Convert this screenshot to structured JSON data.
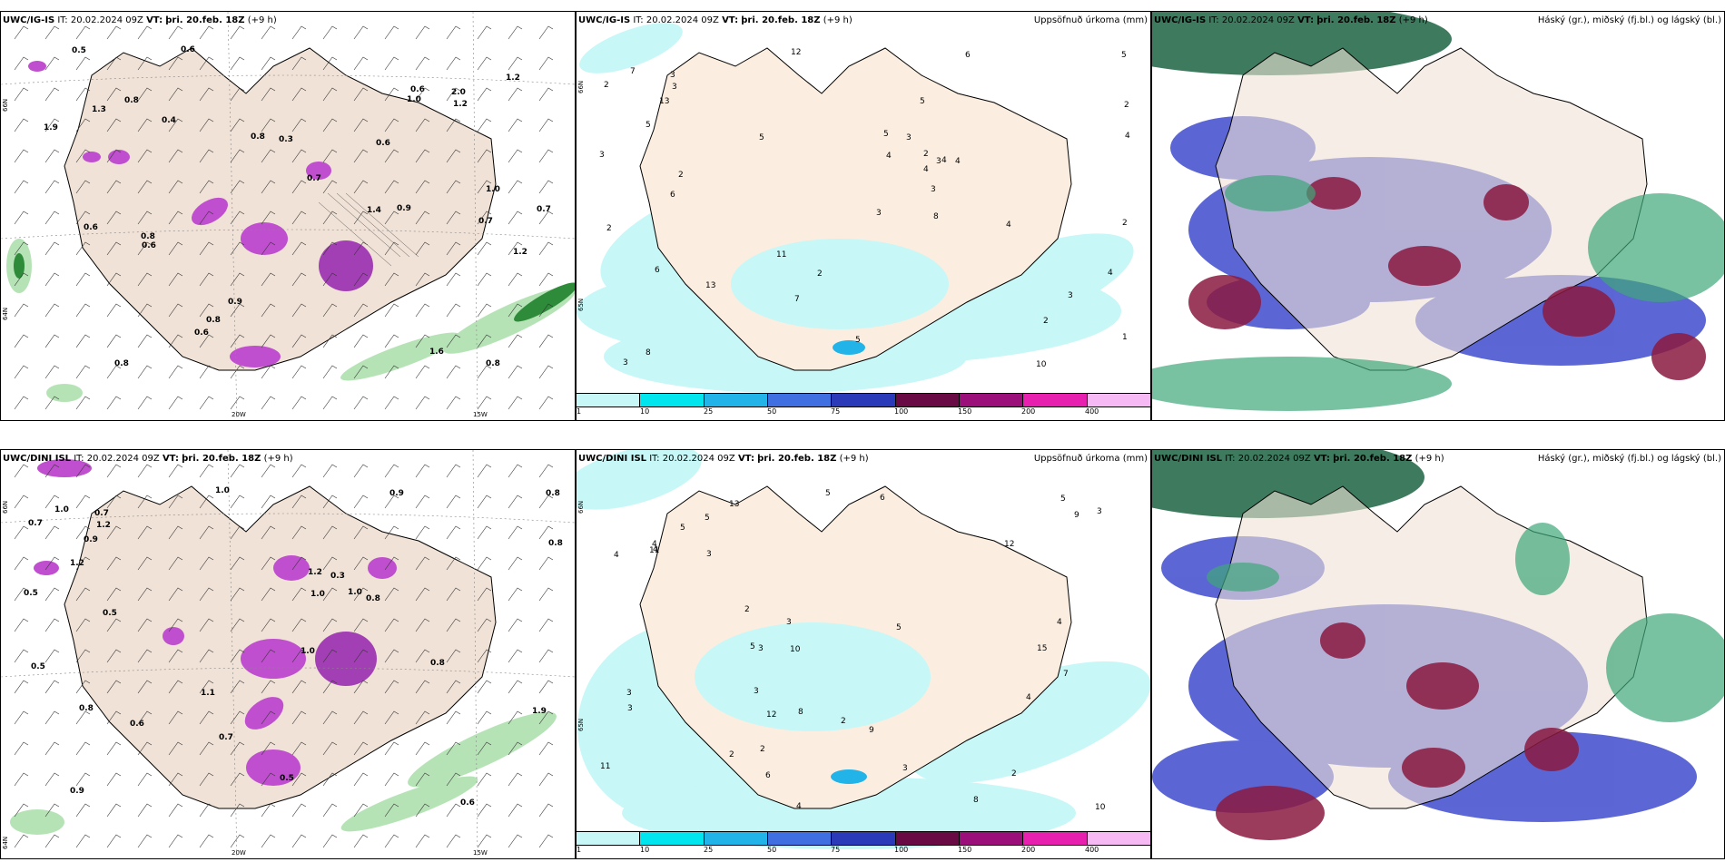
{
  "rows": [
    {
      "model": "UWC/IG-IS",
      "it_label": "IT:",
      "it_value": "20.02.2024 09Z",
      "vt_label": "VT:",
      "vt_value": "þri. 20.feb. 18Z",
      "lead": "(+9 h)"
    },
    {
      "model": "UWC/DINI ISL",
      "it_label": "IT:",
      "it_value": "20.02.2024 09Z",
      "vt_label": "VT:",
      "vt_value": "þri. 20.feb. 18Z",
      "lead": "(+9 h)"
    }
  ],
  "precip_title": "Uppsöfnuð úrkoma (mm)",
  "cloud_title": "Háský (gr.), miðský (fj.bl.) og lágský (bl.)",
  "colorbar": {
    "ticks": [
      "1",
      "10",
      "25",
      "50",
      "75",
      "100",
      "150",
      "200",
      "400"
    ],
    "colors": [
      "#c7f7f7",
      "#00e5ee",
      "#22b4e9",
      "#3f6fe0",
      "#2a3ab8",
      "#6a0a44",
      "#9b0f7a",
      "#e820b0",
      "#f6b9f4"
    ]
  },
  "axis": {
    "lon_20": "20W",
    "lon_15": "15W",
    "lat_66": "66N",
    "lat_64": "64N",
    "lat_65": "65N"
  },
  "top_left_values": [
    "0.9",
    "0.8",
    "0.7",
    "0.7",
    "0.6",
    "1.2",
    "1.4",
    "0.8",
    "0.6",
    "0.5",
    "0.6",
    "1.6",
    "0.7",
    "0.6",
    "0.8",
    "0.6",
    "0.8",
    "1.2",
    "1.0",
    "0.8",
    "0.3",
    "1.3",
    "1.2",
    "0.9",
    "1.0",
    "0.8",
    "2.0",
    "0.4",
    "1.9",
    "0.6"
  ],
  "top_mid_values": [
    "11",
    "7",
    "2",
    "3",
    "4",
    "5",
    "6",
    "2",
    "3",
    "5",
    "3",
    "2",
    "4",
    "5",
    "6",
    "12",
    "7",
    "8",
    "4",
    "3",
    "2",
    "10",
    "13",
    "13",
    "5",
    "4",
    "3",
    "2",
    "3",
    "4",
    "5",
    "4",
    "3",
    "3",
    "2",
    "2",
    "2",
    "3",
    "4",
    "5",
    "6",
    "1",
    "8"
  ],
  "bot_left_values": [
    "1.1",
    "1.0",
    "0.8",
    "0.5",
    "0.8",
    "1.2",
    "0.8",
    "0.7",
    "1.0",
    "0.8",
    "1.2",
    "1.0",
    "1.9",
    "0.5",
    "0.9",
    "1.0",
    "0.7",
    "0.9",
    "1.0",
    "0.7",
    "0.5",
    "0.6",
    "0.9",
    "0.6",
    "1.2",
    "0.8",
    "0.3",
    "0.5"
  ],
  "bot_mid_values": [
    "5",
    "10",
    "11",
    "5",
    "3",
    "2",
    "3",
    "4",
    "6",
    "5",
    "3",
    "2",
    "4",
    "3",
    "4",
    "5",
    "7",
    "8",
    "10",
    "11",
    "15",
    "9",
    "12",
    "8",
    "5",
    "4",
    "3",
    "2",
    "3",
    "4",
    "5",
    "2",
    "3",
    "9",
    "12",
    "13",
    "4",
    "3",
    "2",
    "6"
  ],
  "icons": {
    "wind_barbs": "wind-barb-icon"
  }
}
